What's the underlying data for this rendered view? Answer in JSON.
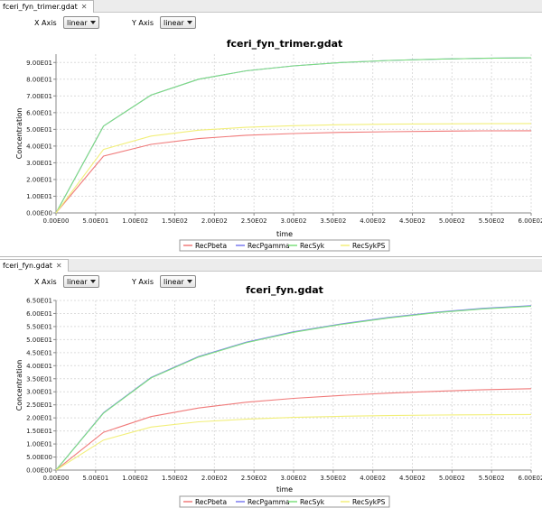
{
  "panels": [
    {
      "tab_label": "fceri_fyn_trimer.gdat",
      "x_axis_label": "X Axis",
      "x_axis_value": "linear",
      "y_axis_label": "Y Axis",
      "y_axis_value": "linear"
    },
    {
      "tab_label": "fceri_fyn.gdat",
      "x_axis_label": "X Axis",
      "x_axis_value": "linear",
      "y_axis_label": "Y Axis",
      "y_axis_value": "linear"
    }
  ],
  "icons": {
    "tab_close": "close-icon",
    "dropdown": "chevron-down-icon"
  },
  "chart_data": [
    {
      "type": "line",
      "title": "fceri_fyn_trimer.gdat",
      "xlabel": "time",
      "ylabel": "Concentration",
      "xlim": [
        0,
        600
      ],
      "ylim": [
        0,
        95
      ],
      "xticks": [
        "0.00E00",
        "5.00E01",
        "1.00E02",
        "1.50E02",
        "2.00E02",
        "2.50E02",
        "3.00E02",
        "3.50E02",
        "4.00E02",
        "4.50E02",
        "5.00E02",
        "5.50E02",
        "6.00E02"
      ],
      "yticks": [
        "0.00E00",
        "1.00E01",
        "2.00E01",
        "3.00E01",
        "4.00E01",
        "5.00E01",
        "6.00E01",
        "7.00E01",
        "8.00E01",
        "9.00E01"
      ],
      "grid": true,
      "legend": "bottom",
      "x": [
        0,
        60,
        120,
        180,
        240,
        300,
        360,
        420,
        480,
        540,
        600
      ],
      "series": [
        {
          "name": "RecPbeta",
          "color": "#f07a7a",
          "values": [
            0,
            34,
            41,
            44.5,
            46.5,
            47.5,
            48.2,
            48.6,
            48.9,
            49.1,
            49.2
          ]
        },
        {
          "name": "RecPgamma",
          "color": "#7b7bf0",
          "values": [
            0,
            52,
            70.5,
            80,
            85,
            88,
            90,
            91.2,
            92,
            92.5,
            92.8
          ]
        },
        {
          "name": "RecSyk",
          "color": "#7ee07e",
          "values": [
            0,
            52,
            70.5,
            80,
            85,
            88,
            90,
            91.2,
            92,
            92.5,
            92.8
          ]
        },
        {
          "name": "RecSykPS",
          "color": "#f2ef7a",
          "values": [
            0,
            38,
            46,
            49.5,
            51.2,
            52.2,
            52.8,
            53.1,
            53.3,
            53.4,
            53.5
          ]
        }
      ]
    },
    {
      "type": "line",
      "title": "fceri_fyn.gdat",
      "xlabel": "time",
      "ylabel": "Concentration",
      "xlim": [
        0,
        600
      ],
      "ylim": [
        0,
        65
      ],
      "xticks": [
        "0.00E00",
        "5.00E01",
        "1.00E02",
        "1.50E02",
        "2.00E02",
        "2.50E02",
        "3.00E02",
        "3.50E02",
        "4.00E02",
        "4.50E02",
        "5.00E02",
        "5.50E02",
        "6.00E02"
      ],
      "yticks": [
        "0.00E00",
        "5.00E00",
        "1.00E01",
        "1.50E01",
        "2.00E01",
        "2.50E01",
        "3.00E01",
        "3.50E01",
        "4.00E01",
        "4.50E01",
        "5.00E01",
        "5.50E01",
        "6.00E01",
        "6.50E01"
      ],
      "grid": true,
      "legend": "bottom",
      "x": [
        0,
        60,
        120,
        180,
        240,
        300,
        360,
        420,
        480,
        540,
        600
      ],
      "series": [
        {
          "name": "RecPbeta",
          "color": "#f07a7a",
          "values": [
            0,
            14.5,
            20.5,
            23.8,
            26,
            27.5,
            28.6,
            29.5,
            30.2,
            30.8,
            31.2
          ]
        },
        {
          "name": "RecPgamma",
          "color": "#7b7bf0",
          "values": [
            0,
            22,
            35.5,
            43.5,
            49,
            53,
            56,
            58.5,
            60.5,
            62,
            63
          ]
        },
        {
          "name": "RecSyk",
          "color": "#7ee07e",
          "values": [
            0,
            21.8,
            35.3,
            43.3,
            48.8,
            52.8,
            55.8,
            58.3,
            60.3,
            61.8,
            62.8
          ]
        },
        {
          "name": "RecSykPS",
          "color": "#f2ef7a",
          "values": [
            0,
            11.5,
            16.5,
            18.5,
            19.5,
            20.2,
            20.6,
            20.9,
            21.1,
            21.2,
            21.3
          ]
        }
      ]
    }
  ]
}
